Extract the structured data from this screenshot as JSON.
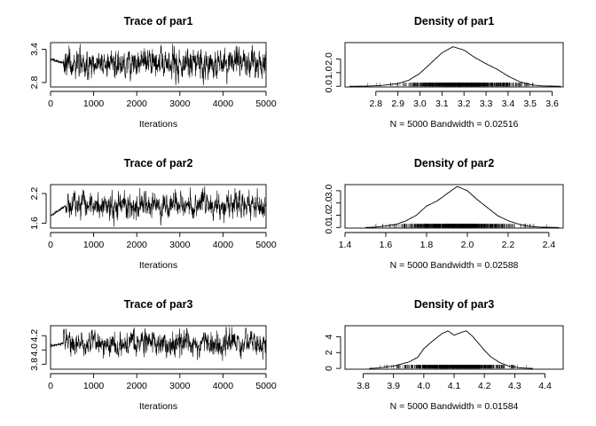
{
  "chart_data": [
    {
      "type": "line",
      "title": "Trace of par1",
      "xlabel": "Iterations",
      "xlim": [
        0,
        5000
      ],
      "ylim": [
        2.72,
        3.52
      ],
      "x_ticks": [
        0,
        1000,
        2000,
        3000,
        4000,
        5000
      ],
      "x_tick_labels": [
        "0",
        "1000",
        "2000",
        "3000",
        "4000",
        "5000"
      ],
      "y_ticks": [
        2.8,
        3.4
      ],
      "y_tick_labels": [
        "2.8",
        "3.4"
      ],
      "series": [
        {
          "values_summary": {
            "n": 5000,
            "start": 3.22,
            "burn_in_end": 300,
            "mean": 3.15,
            "sd": 0.13,
            "min": 2.75,
            "max": 3.5
          }
        }
      ]
    },
    {
      "type": "line",
      "title": "Density of par1",
      "xlabel": "N = 5000   Bandwidth = 0.02516",
      "xlim": [
        2.66,
        3.65
      ],
      "ylim": [
        -0.05,
        3.2
      ],
      "x_ticks": [
        2.8,
        2.9,
        3.0,
        3.1,
        3.2,
        3.3,
        3.4,
        3.5,
        3.6
      ],
      "x_tick_labels": [
        "2.8",
        "2.9",
        "3.0",
        "3.1",
        "3.2",
        "3.3",
        "3.4",
        "3.5",
        "3.6"
      ],
      "y_ticks": [
        0.0,
        1.0,
        2.0
      ],
      "y_tick_labels": [
        "0.0",
        "1.0",
        "2.0"
      ],
      "density_points": [
        [
          2.68,
          0
        ],
        [
          2.75,
          0.01
        ],
        [
          2.82,
          0.05
        ],
        [
          2.9,
          0.2
        ],
        [
          2.95,
          0.45
        ],
        [
          3.0,
          0.95
        ],
        [
          3.05,
          1.7
        ],
        [
          3.1,
          2.45
        ],
        [
          3.15,
          2.9
        ],
        [
          3.2,
          2.65
        ],
        [
          3.25,
          2.1
        ],
        [
          3.3,
          1.65
        ],
        [
          3.35,
          1.25
        ],
        [
          3.4,
          0.75
        ],
        [
          3.45,
          0.35
        ],
        [
          3.5,
          0.12
        ],
        [
          3.55,
          0.03
        ],
        [
          3.64,
          0
        ]
      ]
    },
    {
      "type": "line",
      "title": "Trace of par2",
      "xlabel": "Iterations",
      "xlim": [
        0,
        5000
      ],
      "ylim": [
        1.5,
        2.38
      ],
      "x_ticks": [
        0,
        1000,
        2000,
        3000,
        4000,
        5000
      ],
      "x_tick_labels": [
        "0",
        "1000",
        "2000",
        "3000",
        "4000",
        "5000"
      ],
      "y_ticks": [
        1.6,
        2.2
      ],
      "y_tick_labels": [
        "1.6",
        "2.2"
      ],
      "series": [
        {
          "values_summary": {
            "n": 5000,
            "start": 1.75,
            "burn_in_end": 350,
            "mean": 1.95,
            "sd": 0.13,
            "min": 1.52,
            "max": 2.35
          }
        }
      ]
    },
    {
      "type": "line",
      "title": "Density of par2",
      "xlabel": "N = 5000   Bandwidth = 0.02588",
      "xlim": [
        1.4,
        2.47
      ],
      "ylim": [
        -0.05,
        3.5
      ],
      "x_ticks": [
        1.4,
        1.6,
        1.8,
        2.0,
        2.2,
        2.4
      ],
      "x_tick_labels": [
        "1.4",
        "1.6",
        "1.8",
        "2.0",
        "2.2",
        "2.4"
      ],
      "y_ticks": [
        0.0,
        1.0,
        2.0,
        3.0
      ],
      "y_tick_labels": [
        "0.0",
        "1.0",
        "2.0",
        "3.0"
      ],
      "density_points": [
        [
          1.5,
          0
        ],
        [
          1.55,
          0.03
        ],
        [
          1.6,
          0.12
        ],
        [
          1.65,
          0.25
        ],
        [
          1.7,
          0.55
        ],
        [
          1.75,
          1.0
        ],
        [
          1.8,
          1.75
        ],
        [
          1.85,
          2.15
        ],
        [
          1.9,
          2.75
        ],
        [
          1.95,
          3.35
        ],
        [
          2.0,
          3.0
        ],
        [
          2.05,
          2.25
        ],
        [
          2.1,
          1.6
        ],
        [
          2.15,
          0.95
        ],
        [
          2.2,
          0.55
        ],
        [
          2.25,
          0.28
        ],
        [
          2.3,
          0.1
        ],
        [
          2.35,
          0.03
        ],
        [
          2.45,
          0
        ]
      ]
    },
    {
      "type": "line",
      "title": "Trace of par3",
      "xlabel": "Iterations",
      "xlim": [
        0,
        5000
      ],
      "ylim": [
        3.73,
        4.34
      ],
      "x_ticks": [
        0,
        1000,
        2000,
        3000,
        4000,
        5000
      ],
      "x_tick_labels": [
        "0",
        "1000",
        "2000",
        "3000",
        "4000",
        "5000"
      ],
      "y_ticks": [
        3.8,
        4.0,
        4.2
      ],
      "y_tick_labels": [
        "3.8",
        "4.0",
        "4.2"
      ],
      "series": [
        {
          "values_summary": {
            "n": 5000,
            "start": 4.06,
            "burn_in_end": 300,
            "mean": 4.09,
            "sd": 0.085,
            "min": 3.82,
            "max": 4.32
          }
        }
      ]
    },
    {
      "type": "line",
      "title": "Density of par3",
      "xlabel": "N = 5000   Bandwidth = 0.01584",
      "xlim": [
        3.74,
        4.46
      ],
      "ylim": [
        -0.1,
        5.4
      ],
      "x_ticks": [
        3.8,
        3.9,
        4.0,
        4.1,
        4.2,
        4.3,
        4.4
      ],
      "x_tick_labels": [
        "3.8",
        "3.9",
        "4.0",
        "4.1",
        "4.2",
        "4.3",
        "4.4"
      ],
      "y_ticks": [
        0,
        2,
        4
      ],
      "y_tick_labels": [
        "0",
        "2",
        "4"
      ],
      "density_points": [
        [
          3.82,
          0
        ],
        [
          3.85,
          0.05
        ],
        [
          3.9,
          0.3
        ],
        [
          3.95,
          0.8
        ],
        [
          3.98,
          1.4
        ],
        [
          4.0,
          2.5
        ],
        [
          4.03,
          3.5
        ],
        [
          4.06,
          4.4
        ],
        [
          4.08,
          4.75
        ],
        [
          4.1,
          4.2
        ],
        [
          4.12,
          4.5
        ],
        [
          4.14,
          4.75
        ],
        [
          4.16,
          4.1
        ],
        [
          4.18,
          3.2
        ],
        [
          4.2,
          2.3
        ],
        [
          4.22,
          1.5
        ],
        [
          4.25,
          0.75
        ],
        [
          4.28,
          0.3
        ],
        [
          4.32,
          0.06
        ],
        [
          4.36,
          0
        ]
      ]
    }
  ]
}
